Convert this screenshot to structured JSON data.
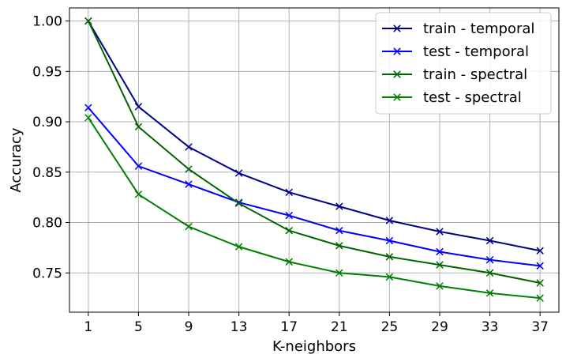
{
  "chart_data": {
    "type": "line",
    "title": "",
    "xlabel": "K-neighbors",
    "ylabel": "Accuracy",
    "x": [
      1,
      5,
      9,
      13,
      17,
      21,
      25,
      29,
      33,
      37
    ],
    "xticks": [
      "1",
      "5",
      "9",
      "13",
      "17",
      "21",
      "25",
      "29",
      "33",
      "37"
    ],
    "yticks": [
      "0.75",
      "0.80",
      "0.85",
      "0.90",
      "0.95",
      "1.00"
    ],
    "ytick_values": [
      0.75,
      0.8,
      0.85,
      0.9,
      0.95,
      1.0
    ],
    "xlim": [
      -0.5,
      38.5
    ],
    "ylim": [
      0.711,
      1.013
    ],
    "grid": true,
    "legend_position": "top-right",
    "marker": "x",
    "series": [
      {
        "name": "train - temporal",
        "color": "#00008b",
        "values": [
          1.0,
          0.915,
          0.875,
          0.849,
          0.83,
          0.816,
          0.802,
          0.791,
          0.782,
          0.772
        ]
      },
      {
        "name": "test - temporal",
        "color": "#0000ff",
        "values": [
          0.914,
          0.856,
          0.838,
          0.82,
          0.807,
          0.792,
          0.782,
          0.771,
          0.763,
          0.757
        ]
      },
      {
        "name": "train - spectral",
        "color": "#006400",
        "values": [
          1.0,
          0.895,
          0.853,
          0.819,
          0.792,
          0.777,
          0.766,
          0.758,
          0.75,
          0.74
        ]
      },
      {
        "name": "test - spectral",
        "color": "#008000",
        "values": [
          0.904,
          0.828,
          0.796,
          0.776,
          0.761,
          0.75,
          0.746,
          0.737,
          0.73,
          0.725
        ]
      }
    ]
  }
}
